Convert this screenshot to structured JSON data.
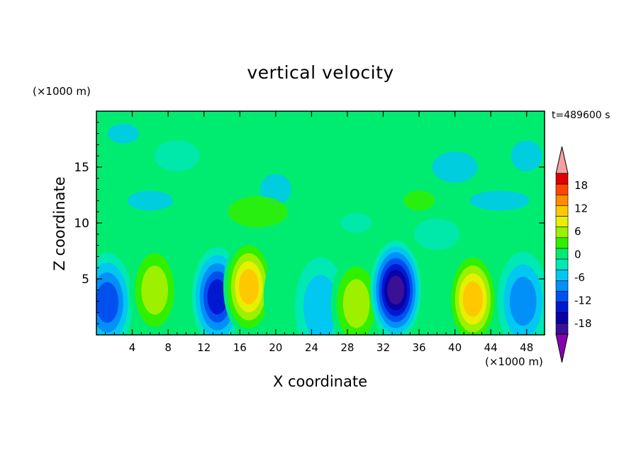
{
  "chart_data": {
    "type": "heatmap",
    "title": "vertical velocity",
    "xlabel": "X coordinate",
    "ylabel": "Z coordinate",
    "x_unit": "(×1000 m)",
    "y_unit": "(×1000 m)",
    "time_label": "t=489600 s",
    "xlim": [
      0,
      50
    ],
    "ylim": [
      0,
      20
    ],
    "x_ticks": [
      4,
      8,
      12,
      16,
      20,
      24,
      28,
      32,
      36,
      40,
      44,
      48
    ],
    "y_ticks": [
      5,
      10,
      15
    ],
    "colorbar": {
      "tick_labels": [
        "18",
        "12",
        "6",
        "0",
        "-6",
        "-12",
        "-18"
      ],
      "tick_values": [
        18,
        12,
        6,
        0,
        -6,
        -12,
        -18
      ],
      "levels": [
        -21,
        -18,
        -15,
        -12,
        -9,
        -6,
        -3,
        0,
        3,
        6,
        9,
        12,
        15,
        18,
        21
      ],
      "colors": [
        "#8a00b0",
        "#3a1096",
        "#0a00a8",
        "#0018d0",
        "#0050f0",
        "#0090f8",
        "#00c8f0",
        "#00e8b4",
        "#00ec70",
        "#30f000",
        "#9cf000",
        "#e6f000",
        "#ffc800",
        "#ff8c00",
        "#ff4600",
        "#e00000",
        "#f4a0a0"
      ]
    },
    "cells": [
      {
        "x": 1.2,
        "z": 2.9,
        "w": -10
      },
      {
        "x": 6.5,
        "z": 4.0,
        "w": 8
      },
      {
        "x": 13.5,
        "z": 3.4,
        "w": -13
      },
      {
        "x": 17.0,
        "z": 4.3,
        "w": 13
      },
      {
        "x": 21.5,
        "z": 3.4,
        "w": 3
      },
      {
        "x": 25.0,
        "z": 2.5,
        "w": -4
      },
      {
        "x": 29.0,
        "z": 2.8,
        "w": 8
      },
      {
        "x": 33.4,
        "z": 4.0,
        "w": -20
      },
      {
        "x": 42.0,
        "z": 3.2,
        "w": 14
      },
      {
        "x": 47.6,
        "z": 3.0,
        "w": -7
      }
    ]
  }
}
